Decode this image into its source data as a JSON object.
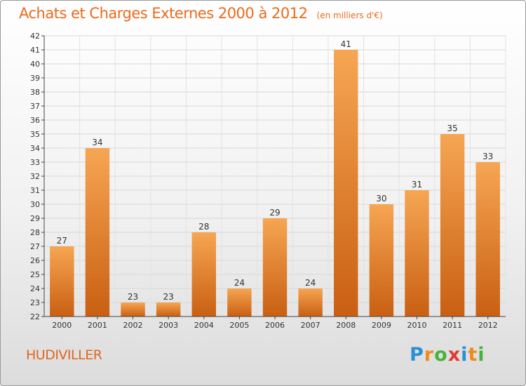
{
  "header": {
    "title": "Achats et Charges Externes 2000 à 2012",
    "unit": "(en milliers d'€)"
  },
  "footer": {
    "commune": "HUDIVILLER",
    "logo_letters": [
      "P",
      "r",
      "o",
      "x",
      "i",
      "t",
      "i"
    ],
    "logo_colors": [
      "#2a8fd6",
      "#f08a1c",
      "#49b23c",
      "#e23a2e",
      "#2a8fd6",
      "#f08a1c",
      "#49b23c"
    ]
  },
  "colors": {
    "bar_light": "#f6a653",
    "bar_dark": "#c95f12",
    "text": "#333333",
    "accent": "#ec6a1b"
  },
  "chart_data": {
    "type": "bar",
    "title": "Achats et Charges Externes 2000 à 2012",
    "unit": "(en milliers d'€)",
    "categories": [
      "2000",
      "2001",
      "2002",
      "2003",
      "2004",
      "2005",
      "2006",
      "2007",
      "2008",
      "2009",
      "2010",
      "2011",
      "2012"
    ],
    "values": [
      27,
      34,
      23,
      23,
      28,
      24,
      29,
      24,
      41,
      30,
      31,
      35,
      33
    ],
    "ylim": [
      22,
      42
    ],
    "yticks": [
      22,
      23,
      24,
      25,
      26,
      27,
      28,
      29,
      30,
      31,
      32,
      33,
      34,
      35,
      36,
      37,
      38,
      39,
      40,
      41,
      42
    ],
    "grid": true,
    "legend": "none"
  }
}
